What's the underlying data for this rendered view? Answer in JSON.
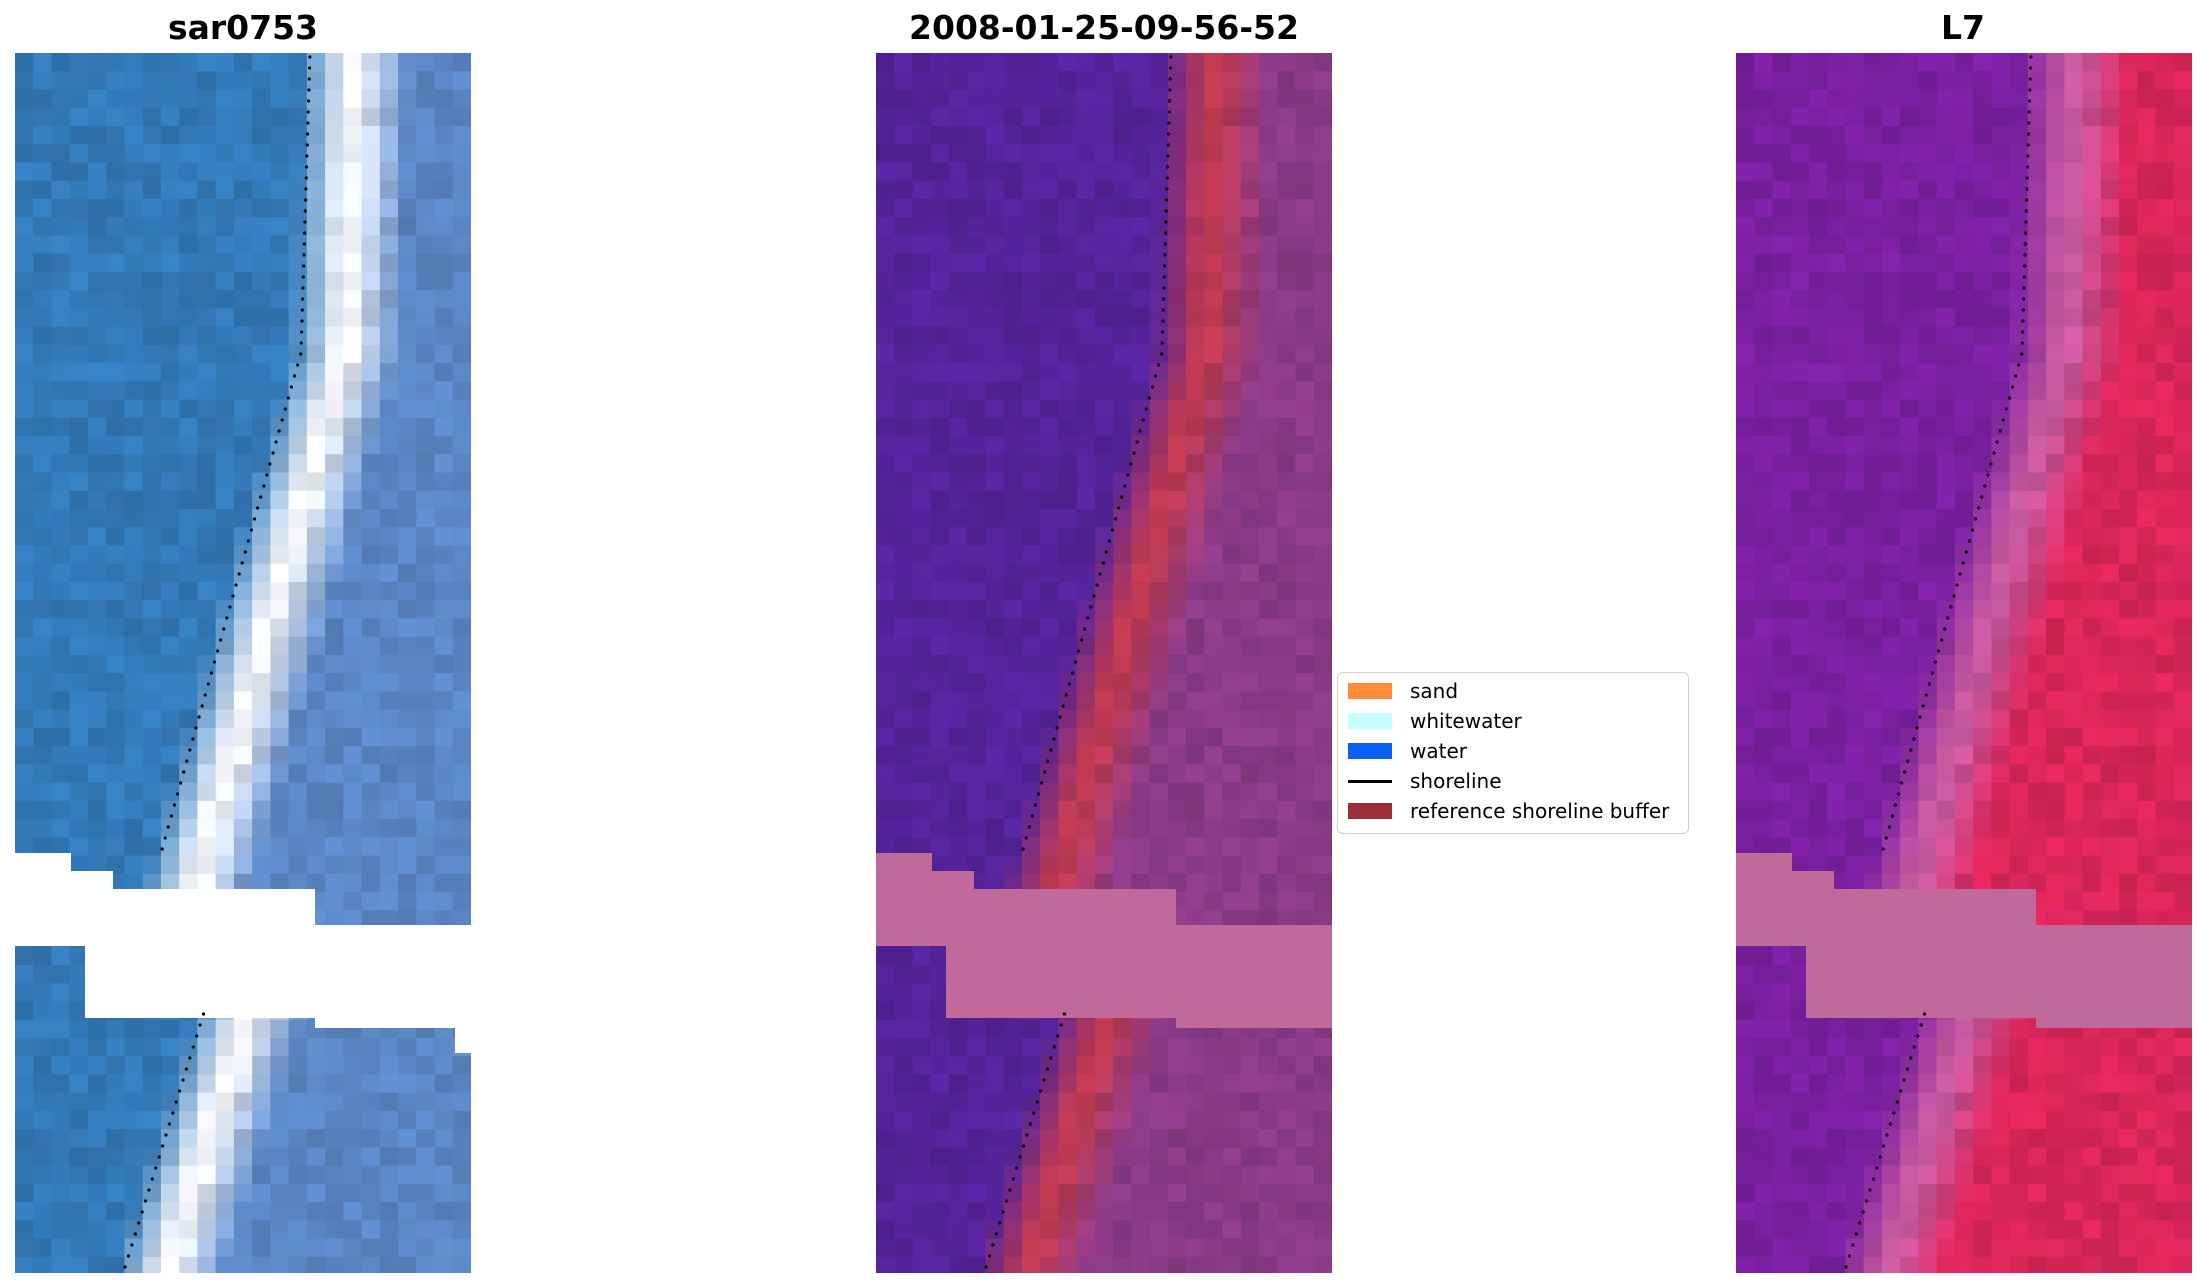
{
  "panels": [
    {
      "title": "sar0753",
      "palette": "rgb",
      "colors": {
        "sea": "#3379b8",
        "surf": "#f4f6fb",
        "land": "#5a86c4"
      }
    },
    {
      "title": "2008-01-25-09-56-52",
      "palette": "classified",
      "colors": {
        "sea": "#54239a",
        "surf": "#c03a52",
        "land": "#8a3a86"
      }
    },
    {
      "title": "L7",
      "palette": "ndwi",
      "colors": {
        "sea": "#7a1fa0",
        "surf": "#c85aa0",
        "land": "#d8255a"
      }
    }
  ],
  "legend": {
    "items": [
      {
        "label": "sand",
        "type": "patch",
        "color": "#ff8c3a"
      },
      {
        "label": "whitewater",
        "type": "patch",
        "color": "#c6ffff"
      },
      {
        "label": "water",
        "type": "patch",
        "color": "#0a5ef0"
      },
      {
        "label": "shoreline",
        "type": "line",
        "color": "#000000"
      },
      {
        "label": "reference shoreline buffer",
        "type": "patch",
        "color": "#9a2e3a"
      }
    ]
  },
  "nodata_color": "#c0699a"
}
